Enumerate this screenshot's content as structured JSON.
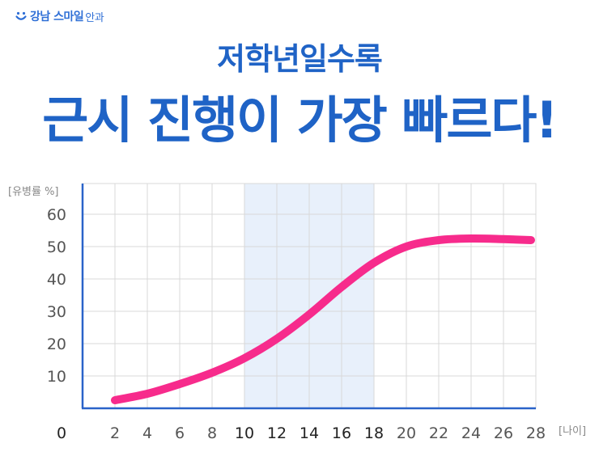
{
  "logo": {
    "brand": "강남 스마일",
    "sub": "안과"
  },
  "subtitle": "저학년일수록",
  "title": "근시 진행이 가장 빠르다!",
  "colors": {
    "accent": "#1f63c6",
    "curve": "#f72b8c",
    "highlight": "#e8f0fb",
    "axis": "#2a63c9",
    "grid": "#d8d8d8",
    "tick_dark": "#222222",
    "tick_light": "#555555"
  },
  "chart_data": {
    "type": "line",
    "ylabel": "[유병률 %]",
    "xlabel": "[나이]",
    "origin_label": "0",
    "xlim": [
      0,
      28
    ],
    "ylim": [
      0,
      60
    ],
    "x_ticks": [
      "2",
      "4",
      "6",
      "8",
      "10",
      "12",
      "14",
      "16",
      "18",
      "20",
      "22",
      "24",
      "26",
      "28"
    ],
    "y_ticks": [
      "10",
      "20",
      "30",
      "40",
      "50",
      "60"
    ],
    "highlight_range": [
      10,
      18
    ],
    "grid": true,
    "series": [
      {
        "x": [
          2,
          4,
          6,
          8,
          10,
          12,
          14,
          16,
          18,
          20,
          22,
          24,
          26,
          27.7
        ],
        "values": [
          2.5,
          4.5,
          7.5,
          11,
          15.5,
          21.5,
          29,
          37.5,
          45,
          50,
          52,
          52.5,
          52.3,
          52
        ]
      }
    ]
  }
}
